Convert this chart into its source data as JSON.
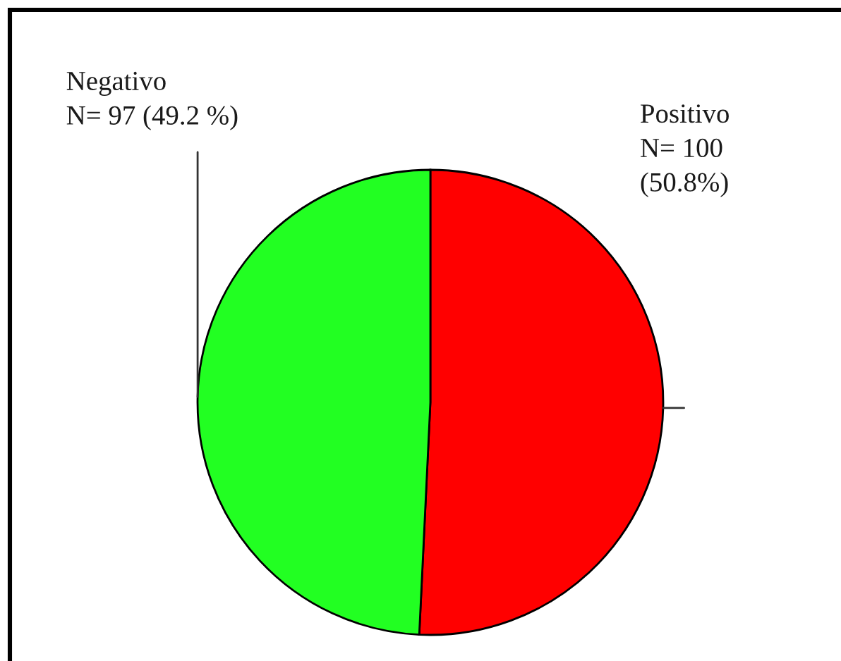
{
  "chart_data": {
    "type": "pie",
    "categories": [
      "Positivo",
      "Negativo"
    ],
    "values": [
      100,
      97
    ],
    "colors": [
      "#ff0000",
      "#22ff22"
    ],
    "value_labels": [
      "N= 100\n(50.8%)",
      "N= 97 (49.2 %)"
    ]
  }
}
